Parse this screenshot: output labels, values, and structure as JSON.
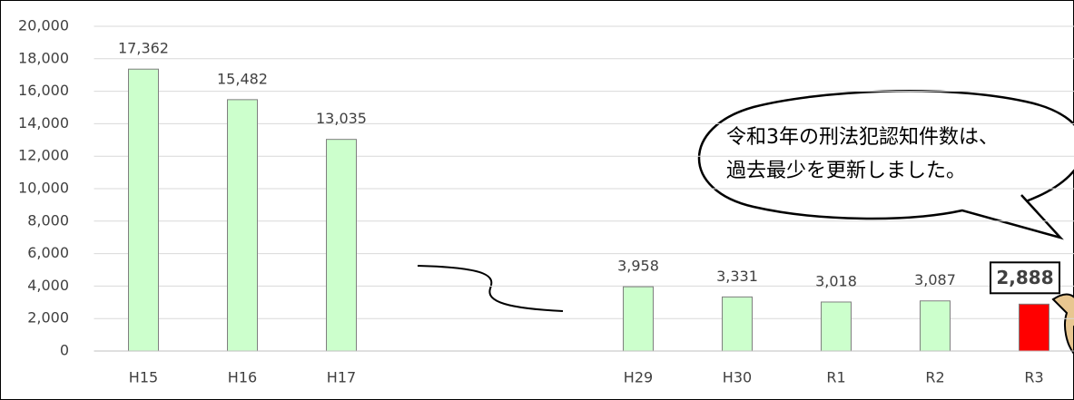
{
  "chart_data": {
    "type": "bar",
    "categories": [
      "H15",
      "H16",
      "H17",
      null,
      null,
      "H29",
      "H30",
      "R1",
      "R2",
      "R3"
    ],
    "values": [
      17362,
      15482,
      13035,
      null,
      null,
      3958,
      3331,
      3018,
      3087,
      2888
    ],
    "value_labels": [
      "17,362",
      "15,482",
      "13,035",
      null,
      null,
      "3,958",
      "3,331",
      "3,018",
      "3,087",
      "2,888"
    ],
    "colors": [
      "#ccffcc",
      "#ccffcc",
      "#ccffcc",
      null,
      null,
      "#ccffcc",
      "#ccffcc",
      "#ccffcc",
      "#ccffcc",
      "#ff0000"
    ],
    "ylim": [
      0,
      20000
    ],
    "yticks": [
      0,
      {
        "value": 2000,
        "label": "2,000"
      },
      {
        "value": 4000,
        "label": "4,000"
      },
      {
        "value": 6000,
        "label": "6,000"
      },
      {
        "value": 8000,
        "label": "8,000"
      },
      {
        "value": 10000,
        "label": "10,000"
      },
      {
        "value": 12000,
        "label": "12,000"
      },
      {
        "value": 14000,
        "label": "14,000"
      },
      {
        "value": 16000,
        "label": "16,000"
      },
      {
        "value": 18000,
        "label": "18,000"
      },
      {
        "value": 20000,
        "label": "20,000"
      }
    ],
    "grid": true,
    "annotation": [
      "令和3年の刑法犯認知件数は、",
      "過去最少を更新しました。"
    ]
  }
}
